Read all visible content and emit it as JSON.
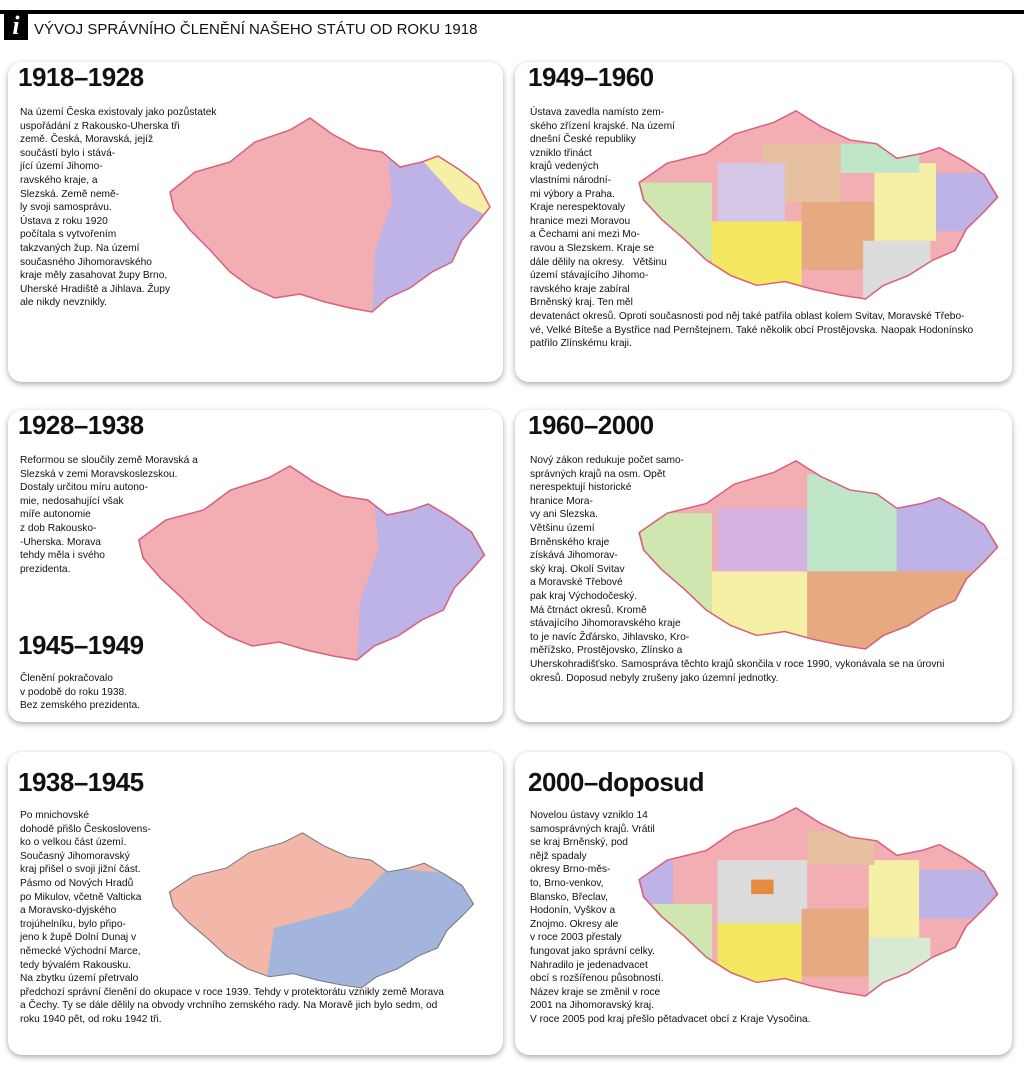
{
  "header": {
    "icon": "i",
    "title": "VÝVOJ SPRÁVNÍHO ČLENĚNÍ NAŠEHO STÁTU OD ROKU 1918"
  },
  "panels": [
    {
      "heading": "1918–1928",
      "lines": [
        "Na území Česka existovaly jako pozůstatek",
        "uspořádání z Rakousko-Uherska tři",
        "země. Česká, Moravská, jejíž",
        "součástí bylo i stává-",
        "jící území Jihomo-",
        "ravského kraje, a",
        "Slezská. Země nemě-",
        "ly svoji samosprávu.",
        "Ústava z roku 1920",
        "počítala s vytvořením",
        "takzvaných žup. Na území",
        "současného Jihomoravského",
        "kraje měly zasahovat župy Brno,",
        "Uherské Hradiště a Jihlava. Župy",
        "ale nikdy nevznikly."
      ]
    },
    {
      "heading": "1928–1938",
      "lines": [
        "Reformou se sloučily země Moravská a",
        "Slezská v zemi Moravskoslezskou.",
        "Dostaly určitou míru autono-",
        "mie, nedosahující však",
        "míře autonomie",
        "z dob Rakousko-",
        "-Uherska. Morava",
        "tehdy měla i svého",
        "prezidenta."
      ]
    },
    {
      "heading": "1938–1945",
      "lines": [
        "Po mnichovské",
        "dohodě přišlo Českoslovens-",
        "ko o velkou část území.",
        "Současný Jihomoravský",
        "kraj přišel o svoji jižní část.",
        "Pásmo od Nových Hradů",
        "po Mikulov, včetně Valticka",
        "a Moravsko-dyjského",
        "trojúhelníku, bylo připo-",
        "jeno k župě Dolní Dunaj v",
        "německé Východní Marce,",
        "tedy bývalém Rakousku.",
        "Na zbytku území přetrvalo",
        "předchozí správní členění do okupace v roce 1939. Tehdy v protektorátu vznikly země Morava",
        "a Čechy. Ty se dále dělily na obvody vrchního zemského rady. Na Moravě jich bylo sedm, od",
        "roku 1940 pět, od roku 1942 tři."
      ]
    },
    {
      "heading": "1945–1949",
      "lines": [
        "Členění pokračovalo",
        "v podobě do roku 1938.",
        "Bez zemského prezidenta."
      ]
    },
    {
      "heading": "1949–1960",
      "lines": [
        "Ústava zavedla namísto zem-",
        "ského zřízení krajské. Na území",
        "dnešní České republiky",
        "vzniklo třináct",
        "krajů vedených",
        "vlastními národní-",
        "mi výbory a Praha.",
        "Kraje nerespektovaly",
        "hranice mezi Moravou",
        "a Čechami ani mezi Mo-",
        "ravou a Slezskem. Kraje se",
        "dále dělily na okresy.   Většinu",
        "území stávajícího Jihomo-",
        "ravského kraje zabíral",
        "Brněnský kraj. Ten měl",
        "devatenáct okresů. Oproti současnosti pod něj také patřila oblast kolem Svitav, Moravské Třebo-",
        "vé, Velké Bíteše a Bystřice nad Pernštejnem. Také několik obcí Prostějovska. Naopak Hodonínsko",
        "patřilo Zlínskému kraji."
      ]
    },
    {
      "heading": "1960–2000",
      "lines": [
        "Nový zákon redukuje počet samo-",
        "správných krajů na osm. Opět",
        "nerespektují historické",
        "hranice Mora-",
        "vy ani Slezska.",
        "Většinu území",
        "Brněnského kraje",
        "získává Jihomorav-",
        "ský kraj. Okolí Svitav",
        "a Moravské Třebové",
        "pak kraj Východočeský.",
        "Má čtrnáct okresů. Kromě",
        "stávajícího Jihomoravského kraje",
        "to je navíc Žďársko, Jihlavsko, Kro-",
        "měřížsko, Prostějovsko, Zlínsko a",
        "Uherskohradišťsko. Samospráva těchto krajů skončila v roce 1990, vykonávala se na úrovni",
        "okresů. Doposud nebyly zrušeny jako územní jednotky."
      ]
    },
    {
      "heading": "2000–doposud",
      "lines": [
        "Novelou ústavy vzniklo 14",
        "samosprávných krajů. Vrátil",
        "se kraj Brněnský, pod",
        "nějž spadaly",
        "okresy Brno-měs-",
        "to, Brno-venkov,",
        "Blansko, Břeclav,",
        "Hodonín, Vyškov a",
        "Znojmo. Okresy ale",
        "v roce 2003 přestaly",
        "fungovat jako správní celky.",
        "Nahradilo je jedenadvacet",
        "obcí s rozšířenou působností.",
        "Název kraje se změnil v roce",
        "2001 na Jihomoravský kraj.",
        "V roce 2005 pod kraj přešlo pětadvacet obcí z Kraje Vysočina."
      ]
    }
  ]
}
